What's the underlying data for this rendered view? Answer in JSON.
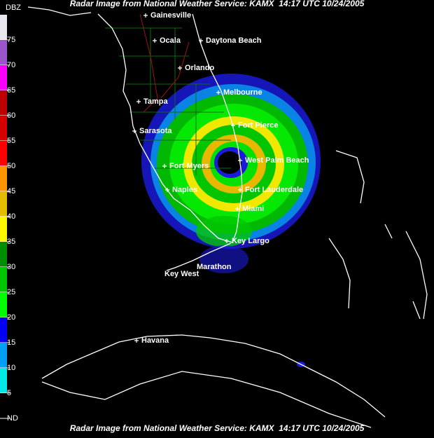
{
  "header": {
    "title": "Radar Image from National Weather Service: KAMX  14:17 UTC 10/24/2005"
  },
  "footer": {
    "title": "Radar Image from National Weather Service: KAMX  14:17 UTC 10/24/2005"
  },
  "legend": {
    "unit": "DBZ",
    "levels": [
      75,
      70,
      65,
      60,
      55,
      50,
      45,
      40,
      35,
      30,
      25,
      20,
      15,
      10,
      5,
      "ND"
    ]
  },
  "cities": [
    "Gainesville",
    "Ocala",
    "Daytona Beach",
    "Orlando",
    "Melbourne",
    "Tampa",
    "Sarasota",
    "Fort Pierce",
    "West Palm Beach",
    "Fort Myers",
    "Naples",
    "Fort Lauderdale",
    "Miami",
    "Key Largo",
    "Marathon",
    "Key West",
    "Havana"
  ]
}
